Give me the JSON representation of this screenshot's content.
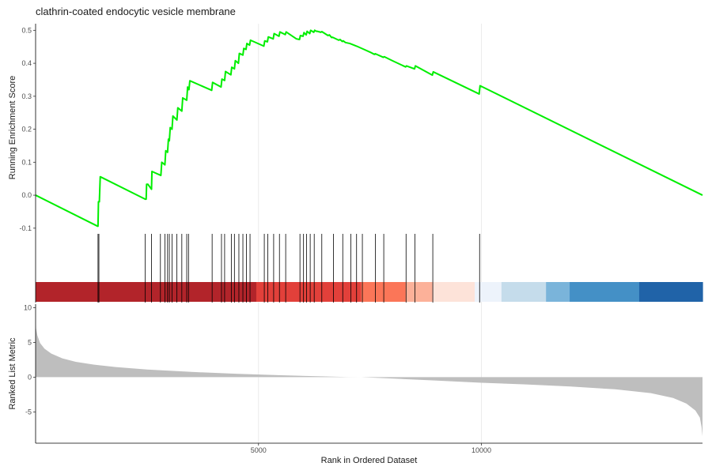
{
  "chart_data": {
    "type": "line",
    "title": "clathrin-coated endocytic vesicle membrane",
    "xlabel": "Rank in Ordered Dataset",
    "xlim": [
      0,
      14960
    ],
    "x_ticks": [
      5000,
      10000
    ],
    "x_tick_labels": [
      "5000",
      "10000"
    ],
    "grid": "vertical major gridlines",
    "panels": {
      "running_score": {
        "ylabel": "Running Enrichment Score",
        "ylim": [
          -0.11,
          0.52
        ],
        "y_ticks": [
          -0.1,
          0.0,
          0.1,
          0.2,
          0.3,
          0.4,
          0.5
        ],
        "y_tick_labels": [
          "-0.1",
          "0.0",
          "0.1",
          "0.2",
          "0.3",
          "0.4",
          "0.5"
        ],
        "series": [
          {
            "color": "#00ee00",
            "x": [
              0,
              1390,
              1400,
              1410,
              1430,
              1450,
              2460,
              2480,
              2490,
              2520,
              2600,
              2610,
              2810,
              2830,
              2900,
              2920,
              2960,
              2980,
              3000,
              3020,
              3060,
              3080,
              3170,
              3190,
              3280,
              3300,
              3390,
              3410,
              3440,
              3460,
              3950,
              3970,
              4160,
              4180,
              4240,
              4260,
              4380,
              4400,
              4460,
              4480,
              4550,
              4570,
              4650,
              4670,
              4720,
              4740,
              4800,
              4820,
              5120,
              5140,
              5200,
              5220,
              5330,
              5350,
              5460,
              5480,
              5600,
              5620,
              5850,
              5920,
              5940,
              6000,
              6020,
              6070,
              6090,
              6150,
              6170,
              6240,
              6260,
              6300,
              6320,
              6400,
              6420,
              6560,
              6590,
              6640,
              6660,
              6800,
              6830,
              6880,
              6900,
              6950,
              7050,
              7200,
              7350,
              7500,
              7600,
              7620,
              7800,
              7820,
              8000,
              8300,
              8320,
              8500,
              8520,
              8900,
              8920,
              9950,
              9970,
              14960
            ],
            "y": [
              0.0,
              -0.094,
              -0.094,
              -0.02,
              -0.02,
              0.056,
              -0.012,
              -0.012,
              0.033,
              0.033,
              0.018,
              0.072,
              0.06,
              0.1,
              0.092,
              0.135,
              0.13,
              0.17,
              0.165,
              0.205,
              0.2,
              0.24,
              0.228,
              0.265,
              0.255,
              0.295,
              0.288,
              0.328,
              0.32,
              0.347,
              0.318,
              0.342,
              0.328,
              0.352,
              0.348,
              0.375,
              0.365,
              0.388,
              0.383,
              0.408,
              0.4,
              0.43,
              0.425,
              0.445,
              0.442,
              0.46,
              0.455,
              0.47,
              0.452,
              0.468,
              0.465,
              0.48,
              0.474,
              0.49,
              0.482,
              0.495,
              0.487,
              0.495,
              0.474,
              0.472,
              0.484,
              0.482,
              0.493,
              0.486,
              0.497,
              0.49,
              0.5,
              0.494,
              0.5,
              0.497,
              0.497,
              0.494,
              0.496,
              0.484,
              0.486,
              0.478,
              0.479,
              0.47,
              0.472,
              0.466,
              0.468,
              0.463,
              0.46,
              0.452,
              0.443,
              0.434,
              0.427,
              0.429,
              0.418,
              0.42,
              0.408,
              0.389,
              0.392,
              0.383,
              0.392,
              0.364,
              0.374,
              0.307,
              0.332,
              0.0
            ]
          }
        ]
      },
      "gene_hits": {
        "x": [
          1400,
          1420,
          2460,
          2600,
          2800,
          2900,
          2960,
          3000,
          3060,
          3170,
          3280,
          3390,
          3430,
          3960,
          4170,
          4240,
          4390,
          4460,
          4560,
          4650,
          4730,
          4810,
          5130,
          5210,
          5340,
          5470,
          5610,
          5930,
          6010,
          6080,
          6160,
          6250,
          6420,
          6680,
          6890,
          7070,
          7200,
          7330,
          7620,
          7810,
          8310,
          8510,
          8910,
          9960
        ]
      },
      "rank_colorbar": {
        "segments": [
          {
            "to": 4950,
            "color": "#b2242a"
          },
          {
            "to": 7300,
            "color": "#e2403a"
          },
          {
            "to": 8300,
            "color": "#fb7658"
          },
          {
            "to": 8900,
            "color": "#fcb199"
          },
          {
            "to": 9850,
            "color": "#fde3d9"
          },
          {
            "to": 10450,
            "color": "#edf3fb"
          },
          {
            "to": 11450,
            "color": "#c5dceb"
          },
          {
            "to": 11980,
            "color": "#7ab4da"
          },
          {
            "to": 13540,
            "color": "#4490c6"
          },
          {
            "to": 14960,
            "color": "#2063a8"
          }
        ]
      },
      "ranked_metric": {
        "ylabel": "Ranked List Metric",
        "ylim": [
          -9.5,
          10.5
        ],
        "y_ticks": [
          -5,
          0,
          5,
          10
        ],
        "y_tick_labels": [
          "-5",
          "0",
          "5",
          "10"
        ],
        "fill_color": "#bebebe",
        "curve": {
          "x": [
            0,
            10,
            40,
            100,
            200,
            350,
            600,
            900,
            1300,
            1800,
            2500,
            3500,
            4500,
            5500,
            6500,
            7000,
            7300,
            8000,
            9000,
            10000,
            11000,
            12000,
            13000,
            13800,
            14300,
            14600,
            14800,
            14900,
            14940,
            14960
          ],
          "y": [
            7.5,
            7.0,
            6.0,
            4.9,
            4.1,
            3.4,
            2.7,
            2.2,
            1.8,
            1.45,
            1.1,
            0.75,
            0.48,
            0.27,
            0.1,
            0.02,
            0.0,
            -0.2,
            -0.5,
            -0.8,
            -1.05,
            -1.35,
            -1.75,
            -2.3,
            -3.0,
            -3.8,
            -4.8,
            -5.8,
            -7.2,
            -8.5
          ]
        }
      }
    }
  }
}
